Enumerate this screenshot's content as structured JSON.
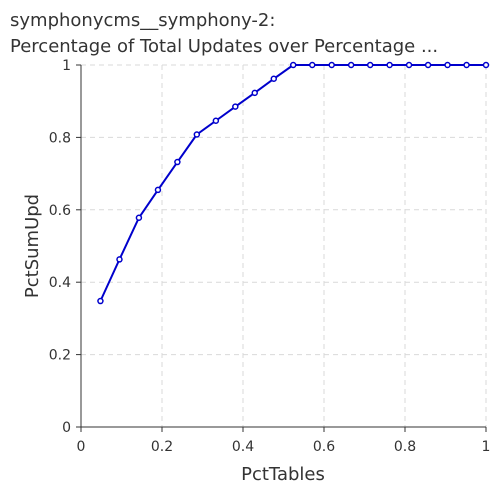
{
  "chart_data": {
    "type": "line",
    "title_line1": "symphonycms__symphony-2:",
    "title_line2": "Percentage of Total Updates over Percentage ...",
    "xlabel": "PctTables",
    "ylabel": "PctSumUpd",
    "xlim": [
      0,
      1
    ],
    "ylim": [
      0,
      1
    ],
    "xticks": [
      "0",
      "0.2",
      "0.4",
      "0.6",
      "0.8",
      "1"
    ],
    "yticks": [
      "0",
      "0.2",
      "0.4",
      "0.6",
      "0.8",
      "1"
    ],
    "grid": true,
    "series": [
      {
        "color": "#0000cc",
        "x": [
          0.048,
          0.095,
          0.143,
          0.19,
          0.238,
          0.286,
          0.333,
          0.381,
          0.429,
          0.476,
          0.524,
          0.571,
          0.619,
          0.667,
          0.714,
          0.762,
          0.81,
          0.857,
          0.905,
          0.952,
          1.0
        ],
        "y": [
          0.348,
          0.463,
          0.578,
          0.655,
          0.732,
          0.808,
          0.846,
          0.885,
          0.923,
          0.962,
          1.0,
          1.0,
          1.0,
          1.0,
          1.0,
          1.0,
          1.0,
          1.0,
          1.0,
          1.0,
          1.0
        ]
      }
    ]
  }
}
